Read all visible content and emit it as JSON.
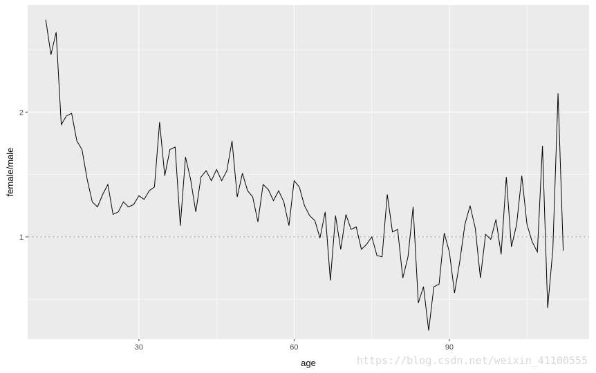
{
  "chart_data": {
    "type": "line",
    "xlabel": "age",
    "ylabel": "female/male",
    "xlim": [
      8.5,
      117
    ],
    "ylim": [
      0.18,
      2.86
    ],
    "x_ticks": [
      30,
      60,
      90
    ],
    "x_minor_ticks": [
      45,
      75,
      105
    ],
    "y_ticks": [
      1,
      2
    ],
    "y_minor_ticks": [
      0.5,
      1.5,
      2.5
    ],
    "reference_line": {
      "y": 1,
      "style": "dashed"
    },
    "grid": true,
    "background": "#ebebeb",
    "grid_color": "#ffffff",
    "line_color": "#000000",
    "series": [
      {
        "x": [
          12,
          13,
          14,
          15,
          16,
          17,
          18,
          19,
          20,
          21,
          22,
          23,
          24,
          25,
          26,
          27,
          28,
          29,
          30,
          31,
          32,
          33,
          34,
          35,
          36,
          37,
          38,
          39,
          40,
          41,
          42,
          43,
          44,
          45,
          46,
          47,
          48,
          49,
          50,
          51,
          52,
          53,
          54,
          55,
          56,
          57,
          58,
          59,
          60,
          61,
          62,
          63,
          64,
          65,
          66,
          67,
          68,
          69,
          70,
          71,
          72,
          73,
          74,
          75,
          76,
          77,
          78,
          79,
          80,
          81,
          82,
          83,
          84,
          85,
          86,
          87,
          88,
          89,
          90,
          91,
          92,
          93,
          94,
          95,
          96,
          97,
          98,
          99,
          100,
          101,
          102,
          103,
          104,
          105,
          106,
          107,
          108,
          109,
          110,
          111,
          112
        ],
        "y": [
          2.74,
          2.46,
          2.64,
          1.9,
          1.97,
          1.99,
          1.77,
          1.7,
          1.46,
          1.28,
          1.24,
          1.34,
          1.42,
          1.18,
          1.2,
          1.28,
          1.24,
          1.26,
          1.33,
          1.3,
          1.37,
          1.4,
          1.92,
          1.49,
          1.7,
          1.72,
          1.09,
          1.64,
          1.46,
          1.2,
          1.48,
          1.53,
          1.45,
          1.54,
          1.45,
          1.53,
          1.77,
          1.32,
          1.51,
          1.37,
          1.32,
          1.12,
          1.42,
          1.38,
          1.29,
          1.37,
          1.28,
          1.09,
          1.45,
          1.4,
          1.25,
          1.17,
          1.13,
          0.99,
          1.2,
          0.65,
          1.17,
          0.9,
          1.18,
          1.06,
          1.08,
          0.9,
          0.94,
          1.0,
          0.85,
          0.84,
          1.34,
          1.04,
          1.06,
          0.67,
          0.84,
          1.24,
          0.47,
          0.6,
          0.25,
          0.6,
          0.62,
          1.03,
          0.88,
          0.55,
          0.8,
          1.1,
          1.25,
          1.07,
          0.67,
          1.02,
          0.98,
          1.14,
          0.86,
          1.48,
          0.92,
          1.1,
          1.49,
          1.1,
          0.96,
          0.88,
          1.73,
          0.43,
          0.9,
          2.15,
          0.89
        ]
      }
    ]
  },
  "watermark": "https://blog.csdn.net/weixin_41100555"
}
